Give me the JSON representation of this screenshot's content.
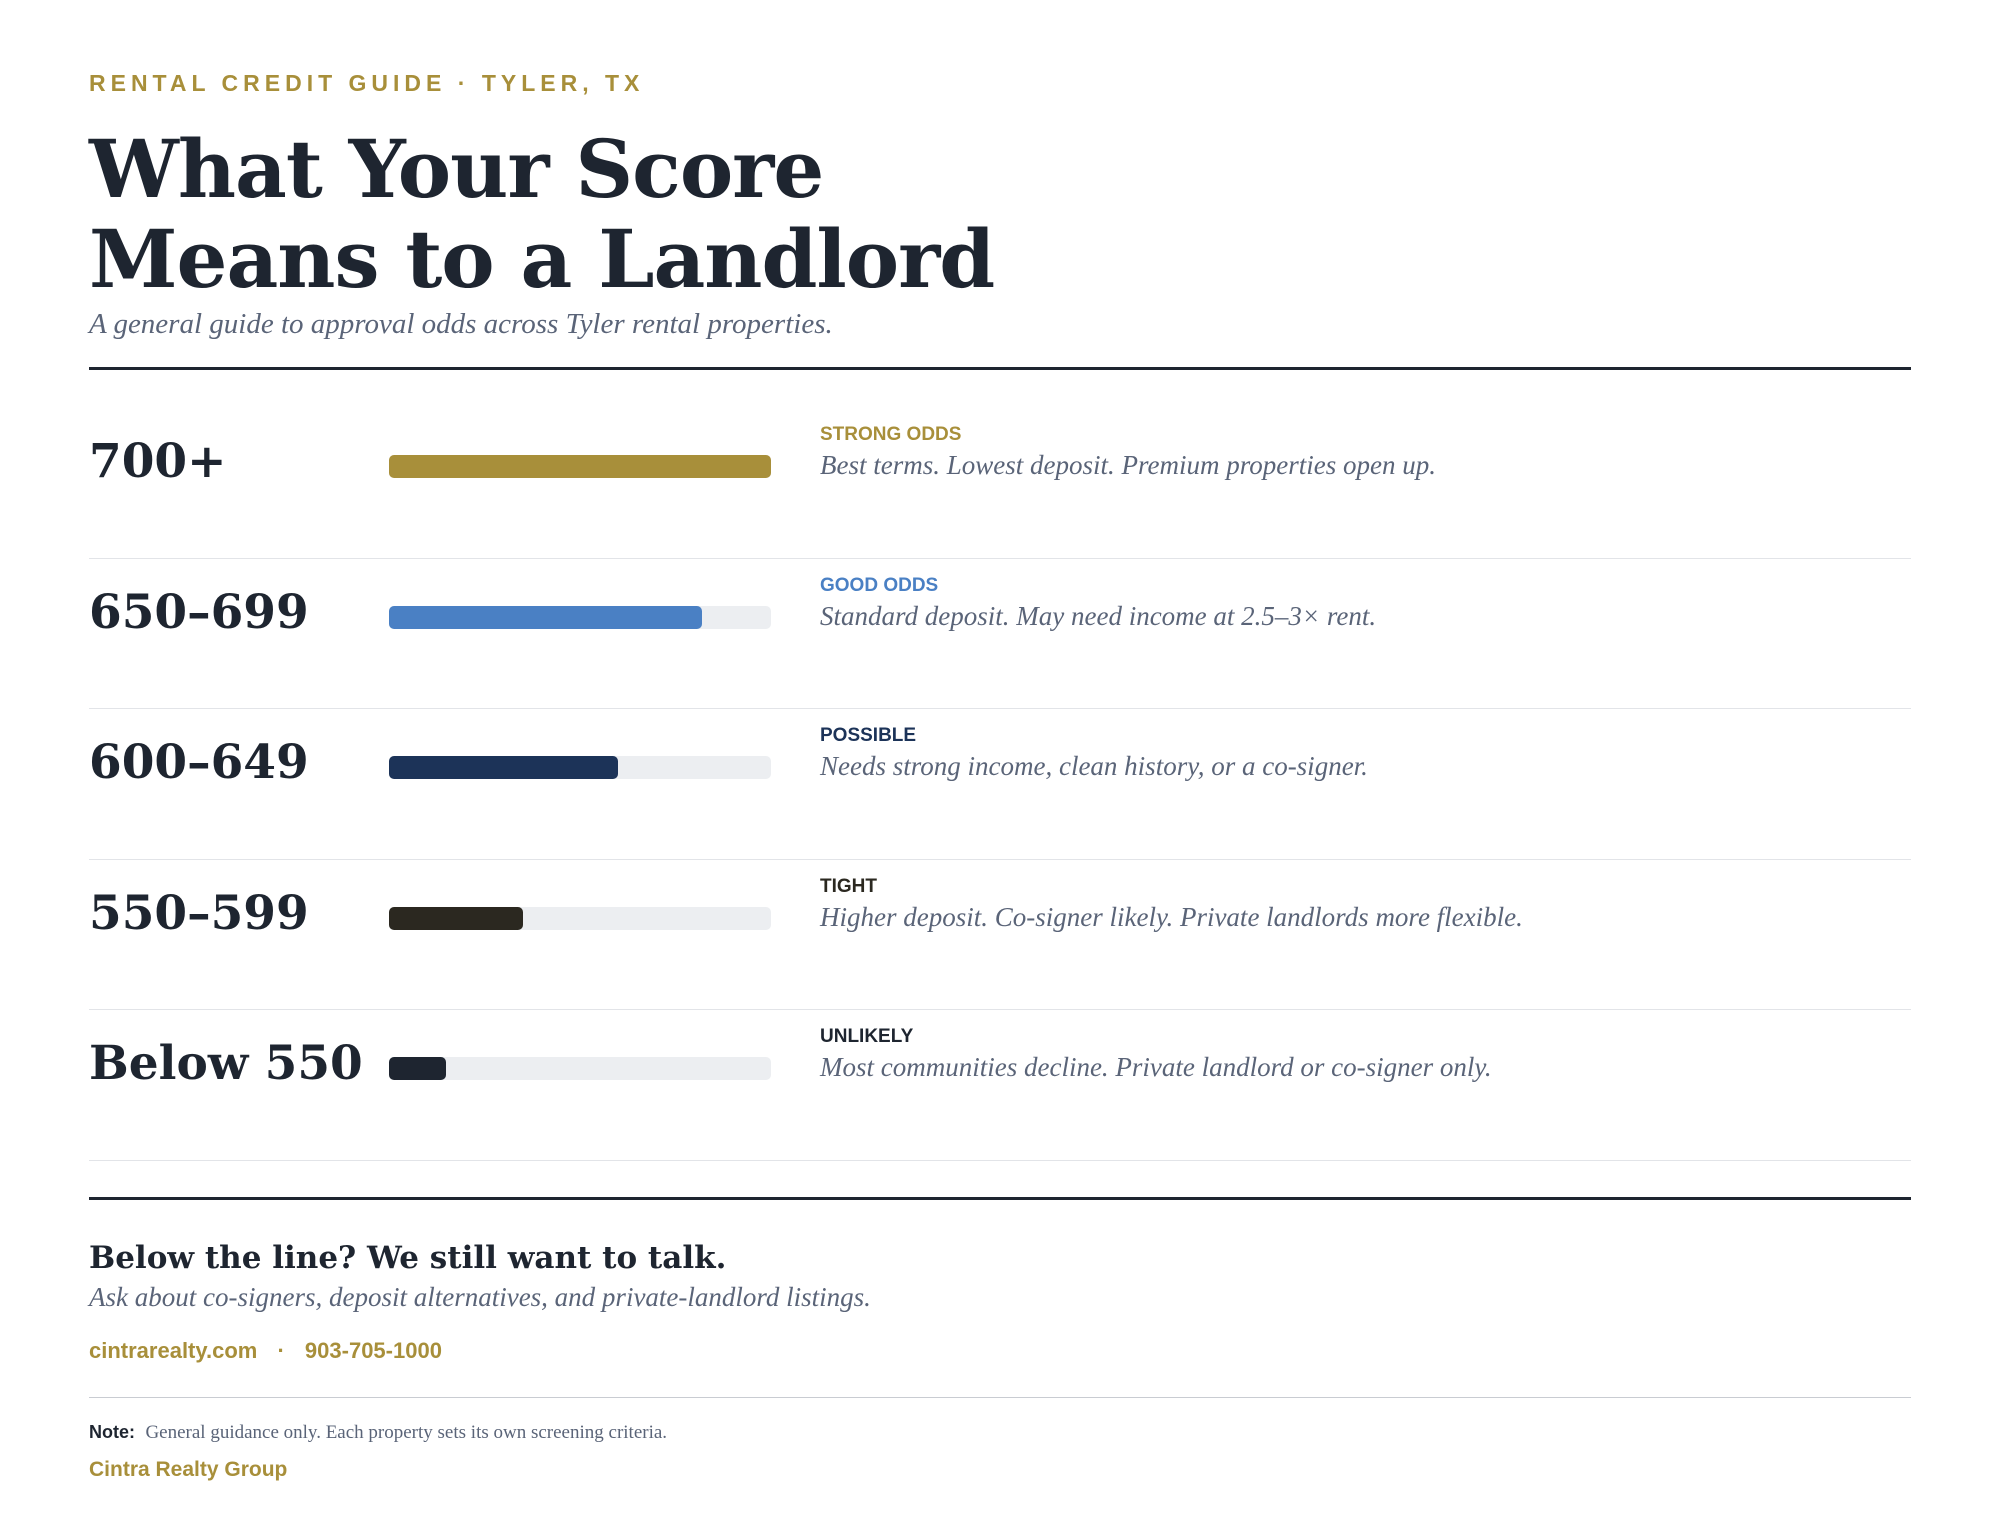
{
  "header": {
    "eyebrow": "RENTAL CREDIT GUIDE · TYLER, TX",
    "title_lines": [
      "What Your Score",
      "Means to a Landlord"
    ],
    "subtitle": "A general guide to approval odds across Tyler rental properties."
  },
  "tiers": {
    "xlim": [
      0,
      100
    ],
    "track_color": "#eceef1",
    "rows": [
      {
        "score": "700+",
        "fill": 100,
        "color": "#a88f3a",
        "label": "STRONG ODDS",
        "description": "Best terms. Lowest deposit. Premium properties open up."
      },
      {
        "score": "650–699",
        "fill": 82,
        "color": "#4a80c4",
        "label": "GOOD ODDS",
        "description": "Standard deposit. May need income at 2.5–3× rent."
      },
      {
        "score": "600–649",
        "fill": 60,
        "color": "#1c3358",
        "label": "POSSIBLE",
        "description": "Needs strong income, clean history, or a co-signer."
      },
      {
        "score": "550–599",
        "fill": 35,
        "color": "#2b2820",
        "label": "TIGHT",
        "description": "Higher deposit. Co-signer likely. Private landlords more flexible."
      },
      {
        "score": "Below 550",
        "fill": 15,
        "color": "#1e2530",
        "label": "UNLIKELY",
        "description": "Most communities decline. Private landlord or co-signer only."
      }
    ]
  },
  "footer": {
    "heading": "Below the line? We still want to talk.",
    "subheading": "Ask about co-signers, deposit alternatives, and private-landlord listings.",
    "website": "cintrarealty.com",
    "separator": "·",
    "phone": "903-705-1000",
    "note_label": "Note:",
    "note": "General guidance only. Each property sets its own screening criteria.",
    "brand": "Cintra Realty Group"
  }
}
